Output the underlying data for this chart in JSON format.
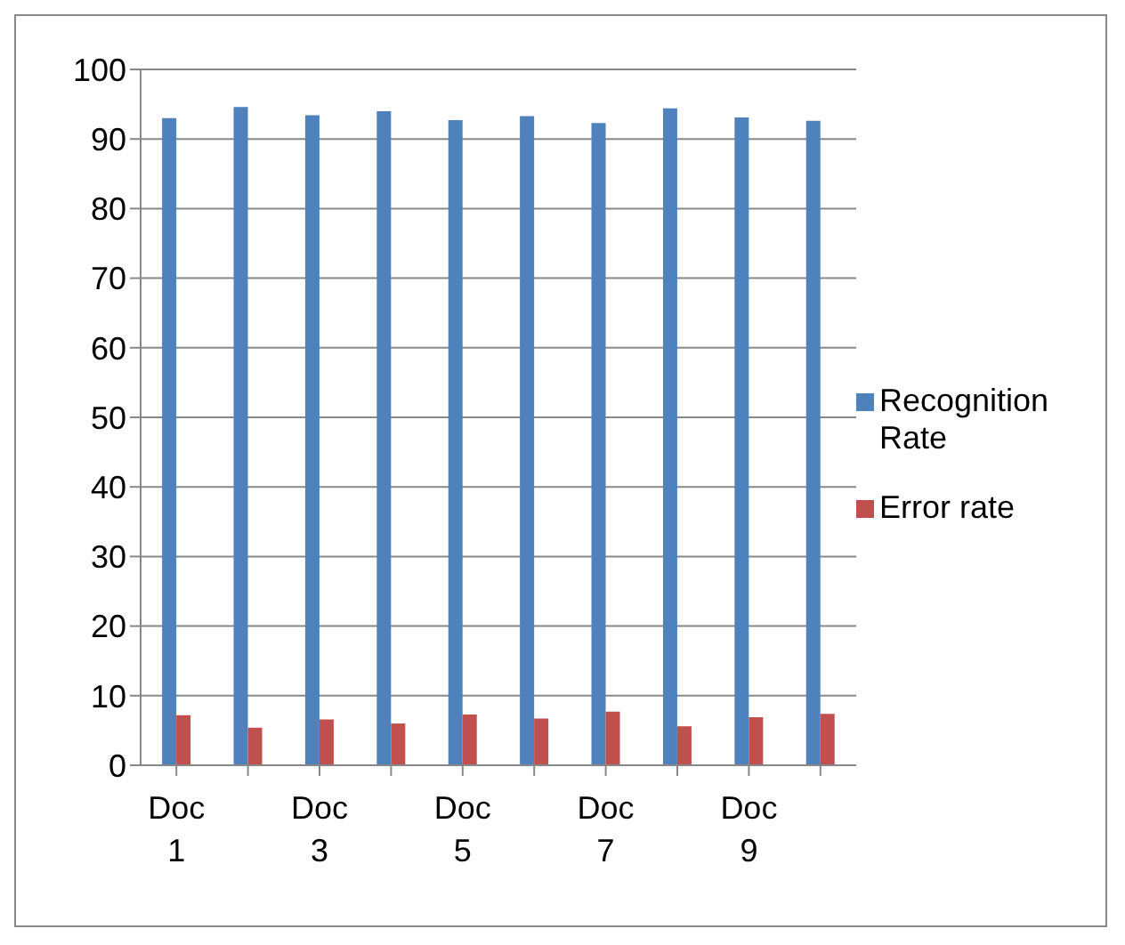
{
  "chart_data": {
    "type": "bar",
    "categories": [
      "Doc 1",
      null,
      "Doc 3",
      null,
      "Doc 5",
      null,
      "Doc 7",
      null,
      "Doc 9",
      null
    ],
    "series": [
      {
        "name": "Recognition Rate",
        "color": "#4f81bd",
        "values": [
          93,
          94.6,
          93.4,
          94,
          92.7,
          93.3,
          92.3,
          94.4,
          93.1,
          92.6
        ]
      },
      {
        "name": "Error rate",
        "color": "#c0504d",
        "values": [
          7.2,
          5.4,
          6.6,
          6,
          7.3,
          6.7,
          7.7,
          5.6,
          6.9,
          7.4
        ]
      }
    ],
    "ylim": [
      0,
      100
    ],
    "yticks": [
      0,
      10,
      20,
      30,
      40,
      50,
      60,
      70,
      80,
      90,
      100
    ],
    "grid": "y",
    "legend": "right"
  }
}
